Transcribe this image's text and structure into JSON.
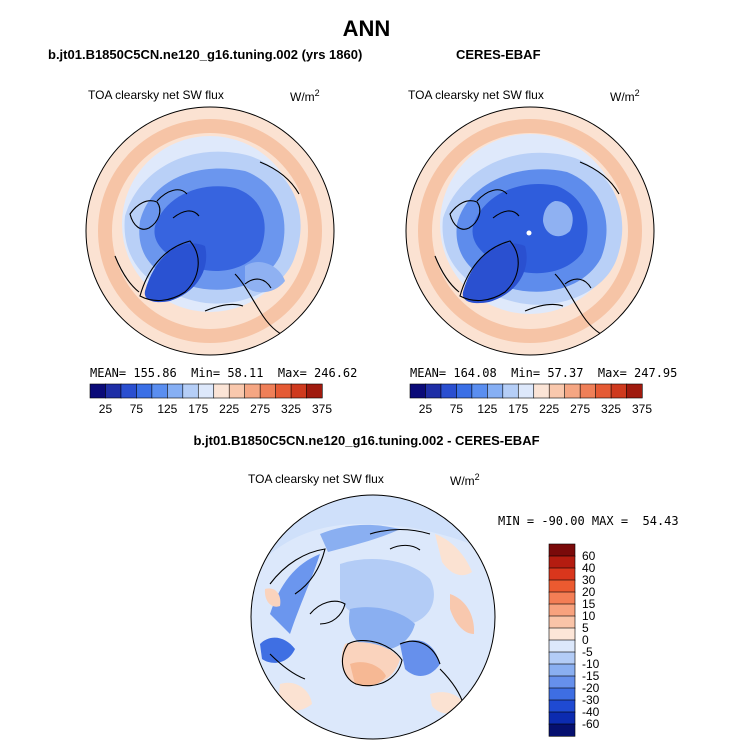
{
  "page_title": "ANN",
  "panels": [
    {
      "case": "b.jt01.B1850C5CN.ne120_g16.tuning.002 (yrs 1860)",
      "variable": "TOA clearsky net SW flux",
      "units_base": "W/m",
      "units_exp": "2",
      "stats": {
        "mean": "155.86",
        "min": "58.11",
        "max": "246.62"
      },
      "colorbar": {
        "ticks": [
          "25",
          "75",
          "125",
          "175",
          "225",
          "275",
          "325",
          "375"
        ],
        "colors": [
          "#0a0a78",
          "#1e2ea6",
          "#2a4fd0",
          "#3a6fe6",
          "#5a8ef0",
          "#86aff4",
          "#b5cef7",
          "#dde8fb",
          "#fbe4d6",
          "#f9c8ad",
          "#f5a683",
          "#ef7f58",
          "#e55a34",
          "#cf3a1e",
          "#a01a0e"
        ]
      },
      "stat_labels": {
        "mean": "MEAN=",
        "min": "Min=",
        "max": "Max="
      }
    },
    {
      "case": "CERES-EBAF",
      "variable": "TOA clearsky net SW flux",
      "units_base": "W/m",
      "units_exp": "2",
      "stats": {
        "mean": "164.08",
        "min": "57.37",
        "max": "247.95"
      },
      "colorbar": {
        "ticks": [
          "25",
          "75",
          "125",
          "175",
          "225",
          "275",
          "325",
          "375"
        ],
        "colors": [
          "#0a0a78",
          "#1e2ea6",
          "#2a4fd0",
          "#3a6fe6",
          "#5a8ef0",
          "#86aff4",
          "#b5cef7",
          "#dde8fb",
          "#fbe4d6",
          "#f9c8ad",
          "#f5a683",
          "#ef7f58",
          "#e55a34",
          "#cf3a1e",
          "#a01a0e"
        ]
      },
      "stat_labels": {
        "mean": "MEAN=",
        "min": "Min=",
        "max": "Max="
      }
    }
  ],
  "diff_panel": {
    "case": "b.jt01.B1850C5CN.ne120_g16.tuning.002 - CERES-EBAF",
    "variable": "TOA clearsky net SW flux",
    "units_base": "W/m",
    "units_exp": "2",
    "stats_text": "MIN = -90.00 MAX =  54.43",
    "colorbar": {
      "ticks": [
        "60",
        "40",
        "30",
        "20",
        "15",
        "10",
        "5",
        "0",
        "-5",
        "-10",
        "-15",
        "-20",
        "-30",
        "-40",
        "-60"
      ],
      "colors": [
        "#7a0a0a",
        "#b41c10",
        "#d9361c",
        "#ec5a30",
        "#f47e55",
        "#f8a27e",
        "#fac4a8",
        "#fde6d8",
        "#dce8fb",
        "#b3ccf6",
        "#8aaff1",
        "#6690ec",
        "#3e6ee3",
        "#1f4ad2",
        "#0c2bb0",
        "#06106f"
      ]
    }
  },
  "colors": {
    "deep_blue": "#1a3ec8",
    "mid_blue": "#3f6fe3",
    "light_blue": "#cfe0fa",
    "salmon": "#f6b894",
    "peach": "#fbe2d2"
  }
}
